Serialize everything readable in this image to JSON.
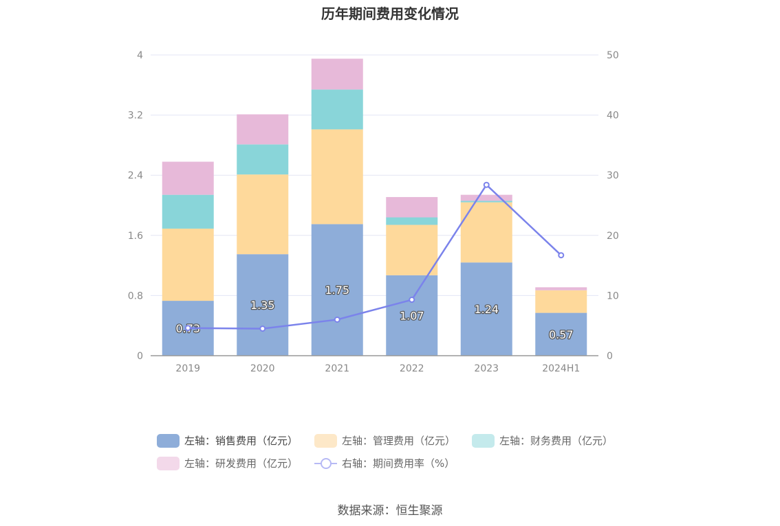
{
  "chart_data": {
    "type": "bar",
    "stacked": true,
    "title": "历年期间费用变化情况",
    "categories": [
      "2019",
      "2020",
      "2021",
      "2022",
      "2023",
      "2024H1"
    ],
    "y_left": {
      "min": 0,
      "max": 4,
      "ticks": [
        "0",
        "0.8",
        "1.6",
        "2.4",
        "3.2",
        "4"
      ]
    },
    "y_right": {
      "min": 0,
      "max": 50,
      "ticks": [
        "0",
        "10",
        "20",
        "30",
        "40",
        "50"
      ]
    },
    "series": [
      {
        "name": "左轴：销售费用（亿元）",
        "axis": "left",
        "color": "#8eadd9",
        "values": [
          0.73,
          1.35,
          1.75,
          1.07,
          1.24,
          0.57
        ],
        "labels": [
          "0.73",
          "1.35",
          "1.75",
          "1.07",
          "1.24",
          "0.57"
        ]
      },
      {
        "name": "左轴：管理费用（亿元）",
        "axis": "left",
        "color": "#fed99b",
        "values": [
          0.96,
          1.06,
          1.26,
          0.67,
          0.8,
          0.3
        ]
      },
      {
        "name": "左轴：财务费用（亿元）",
        "axis": "left",
        "color": "#89d5d9",
        "values": [
          0.45,
          0.4,
          0.53,
          0.1,
          0.02,
          0.0
        ]
      },
      {
        "name": "左轴：研发费用（亿元）",
        "axis": "left",
        "color": "#e7b9d9",
        "values": [
          0.44,
          0.4,
          0.41,
          0.27,
          0.08,
          0.04
        ]
      },
      {
        "name": "右轴：期间费用率（%）",
        "axis": "right",
        "type": "line",
        "color": "#7b83eb",
        "values": [
          4.6,
          4.5,
          6.0,
          9.3,
          28.4,
          16.7
        ]
      }
    ],
    "grid": true
  },
  "legend": {
    "items": [
      {
        "label": "左轴：销售费用（亿元）",
        "color": "#8eadd9"
      },
      {
        "label": "左轴：管理费用（亿元）",
        "color": "#fde8c8"
      },
      {
        "label": "左轴：财务费用（亿元）",
        "color": "#c4eaec"
      },
      {
        "label": "左轴：研发费用（亿元）",
        "color": "#f3d9ea"
      }
    ],
    "line_item": {
      "label": "右轴：期间费用率（%）"
    }
  },
  "source": "数据来源：恒生聚源"
}
